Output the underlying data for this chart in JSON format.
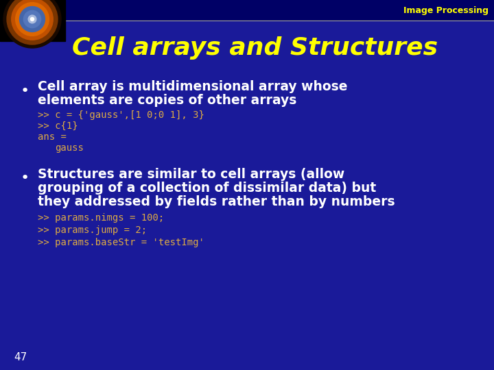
{
  "bg_color": "#1a1a99",
  "header_bar_color": "#000066",
  "header_line_color": "#aaaaaa",
  "title_text": "Cell arrays and Structures",
  "title_color": "#ffff00",
  "header_label": "Image Processing",
  "header_label_color": "#ffff00",
  "slide_number": "47",
  "slide_number_color": "#ffffff",
  "bullet1_line1": "Cell array is multidimensional array whose",
  "bullet1_line2": "elements are copies of other arrays",
  "bullet_text_color": "#ffffff",
  "code1_line1": ">> c = {'gauss',[1 0;0 1], 3}",
  "code1_line2": ">> c{1}",
  "code1_line3": "ans =",
  "code1_line4": "    gauss",
  "code_color": "#ddaa44",
  "bullet2_line1": "Structures are similar to cell arrays (allow",
  "bullet2_line2": "grouping of a collection of dissimilar data) but",
  "bullet2_line3": "they addressed by fields rather than by numbers",
  "code2_line1": ">> params.nimgs = 100;",
  "code2_line2": ">> params.jump = 2;",
  "code2_line3": ">> params.baseStr = 'testImg'",
  "bullet_dot_color": "#ffffff",
  "figwidth": 7.2,
  "figheight": 5.4,
  "dpi": 100
}
